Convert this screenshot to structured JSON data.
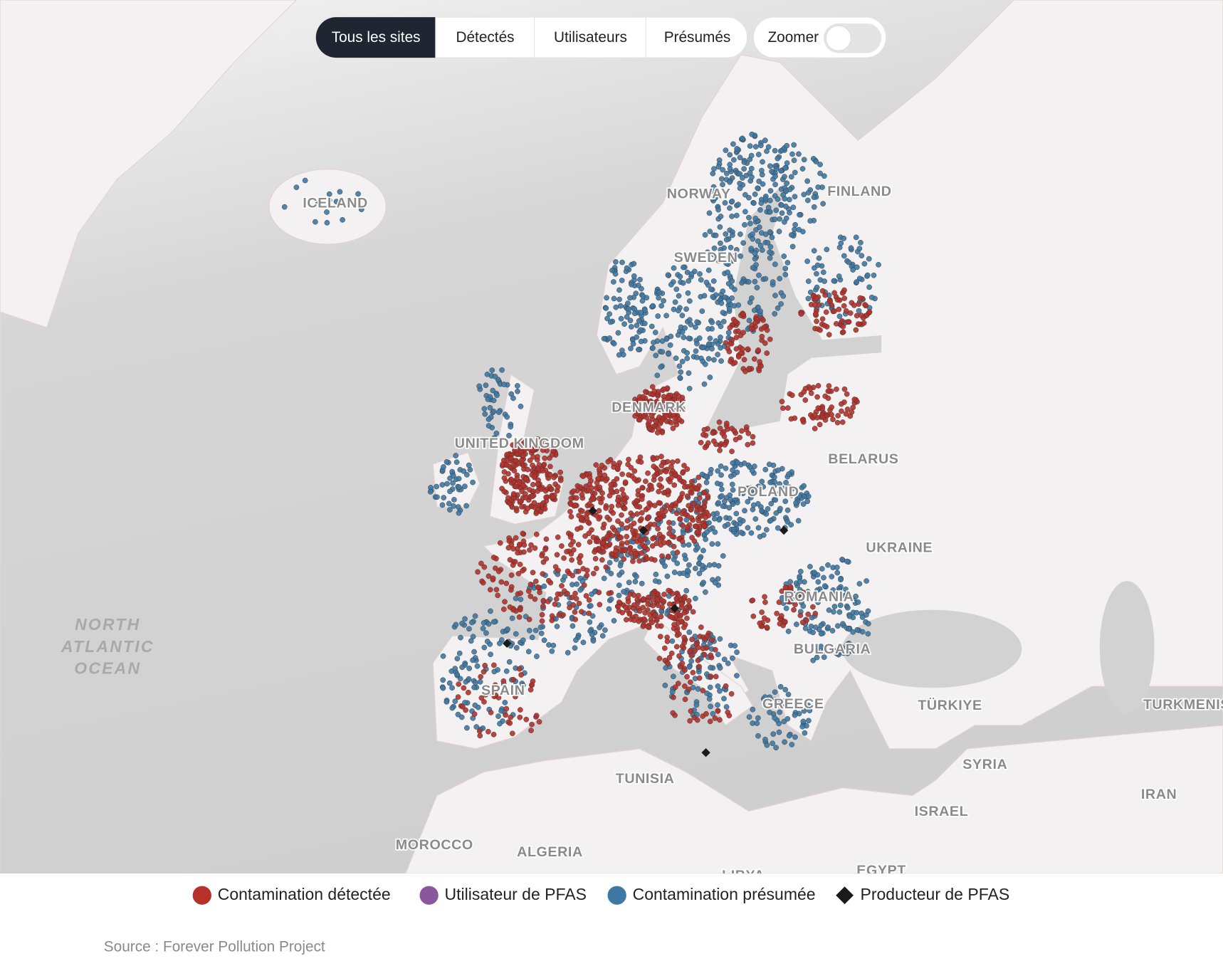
{
  "tabs": [
    "Tous les sites",
    "Détectés",
    "Utilisateurs",
    "Présumés"
  ],
  "toggle": {
    "label": "Zoomer"
  },
  "map": {
    "labels": [
      "ICELAND",
      "NORWAY",
      "FINLAND",
      "SWEDEN",
      "DENMARK",
      "UNITED KINGDOM",
      "BELARUS",
      "POLAND",
      "UKRAINE",
      "ROMANIA",
      "BULGARIA",
      "GREECE",
      "TÜRKIYE",
      "TURKMENISTAN",
      "SPAIN",
      "TUNISIA",
      "SYRIA",
      "IRAN",
      "ISRAEL",
      "MOROCCO",
      "ALGERIA",
      "LIBYA",
      "EGYPT"
    ],
    "ocean": [
      "NORTH",
      "ATLANTIC",
      "OCEAN"
    ]
  },
  "legend": [
    "Contamination détectée",
    "Utilisateur de PFAS",
    "Contamination présumée",
    "Producteur de PFAS"
  ],
  "source": "Source : Forever Pollution Project"
}
